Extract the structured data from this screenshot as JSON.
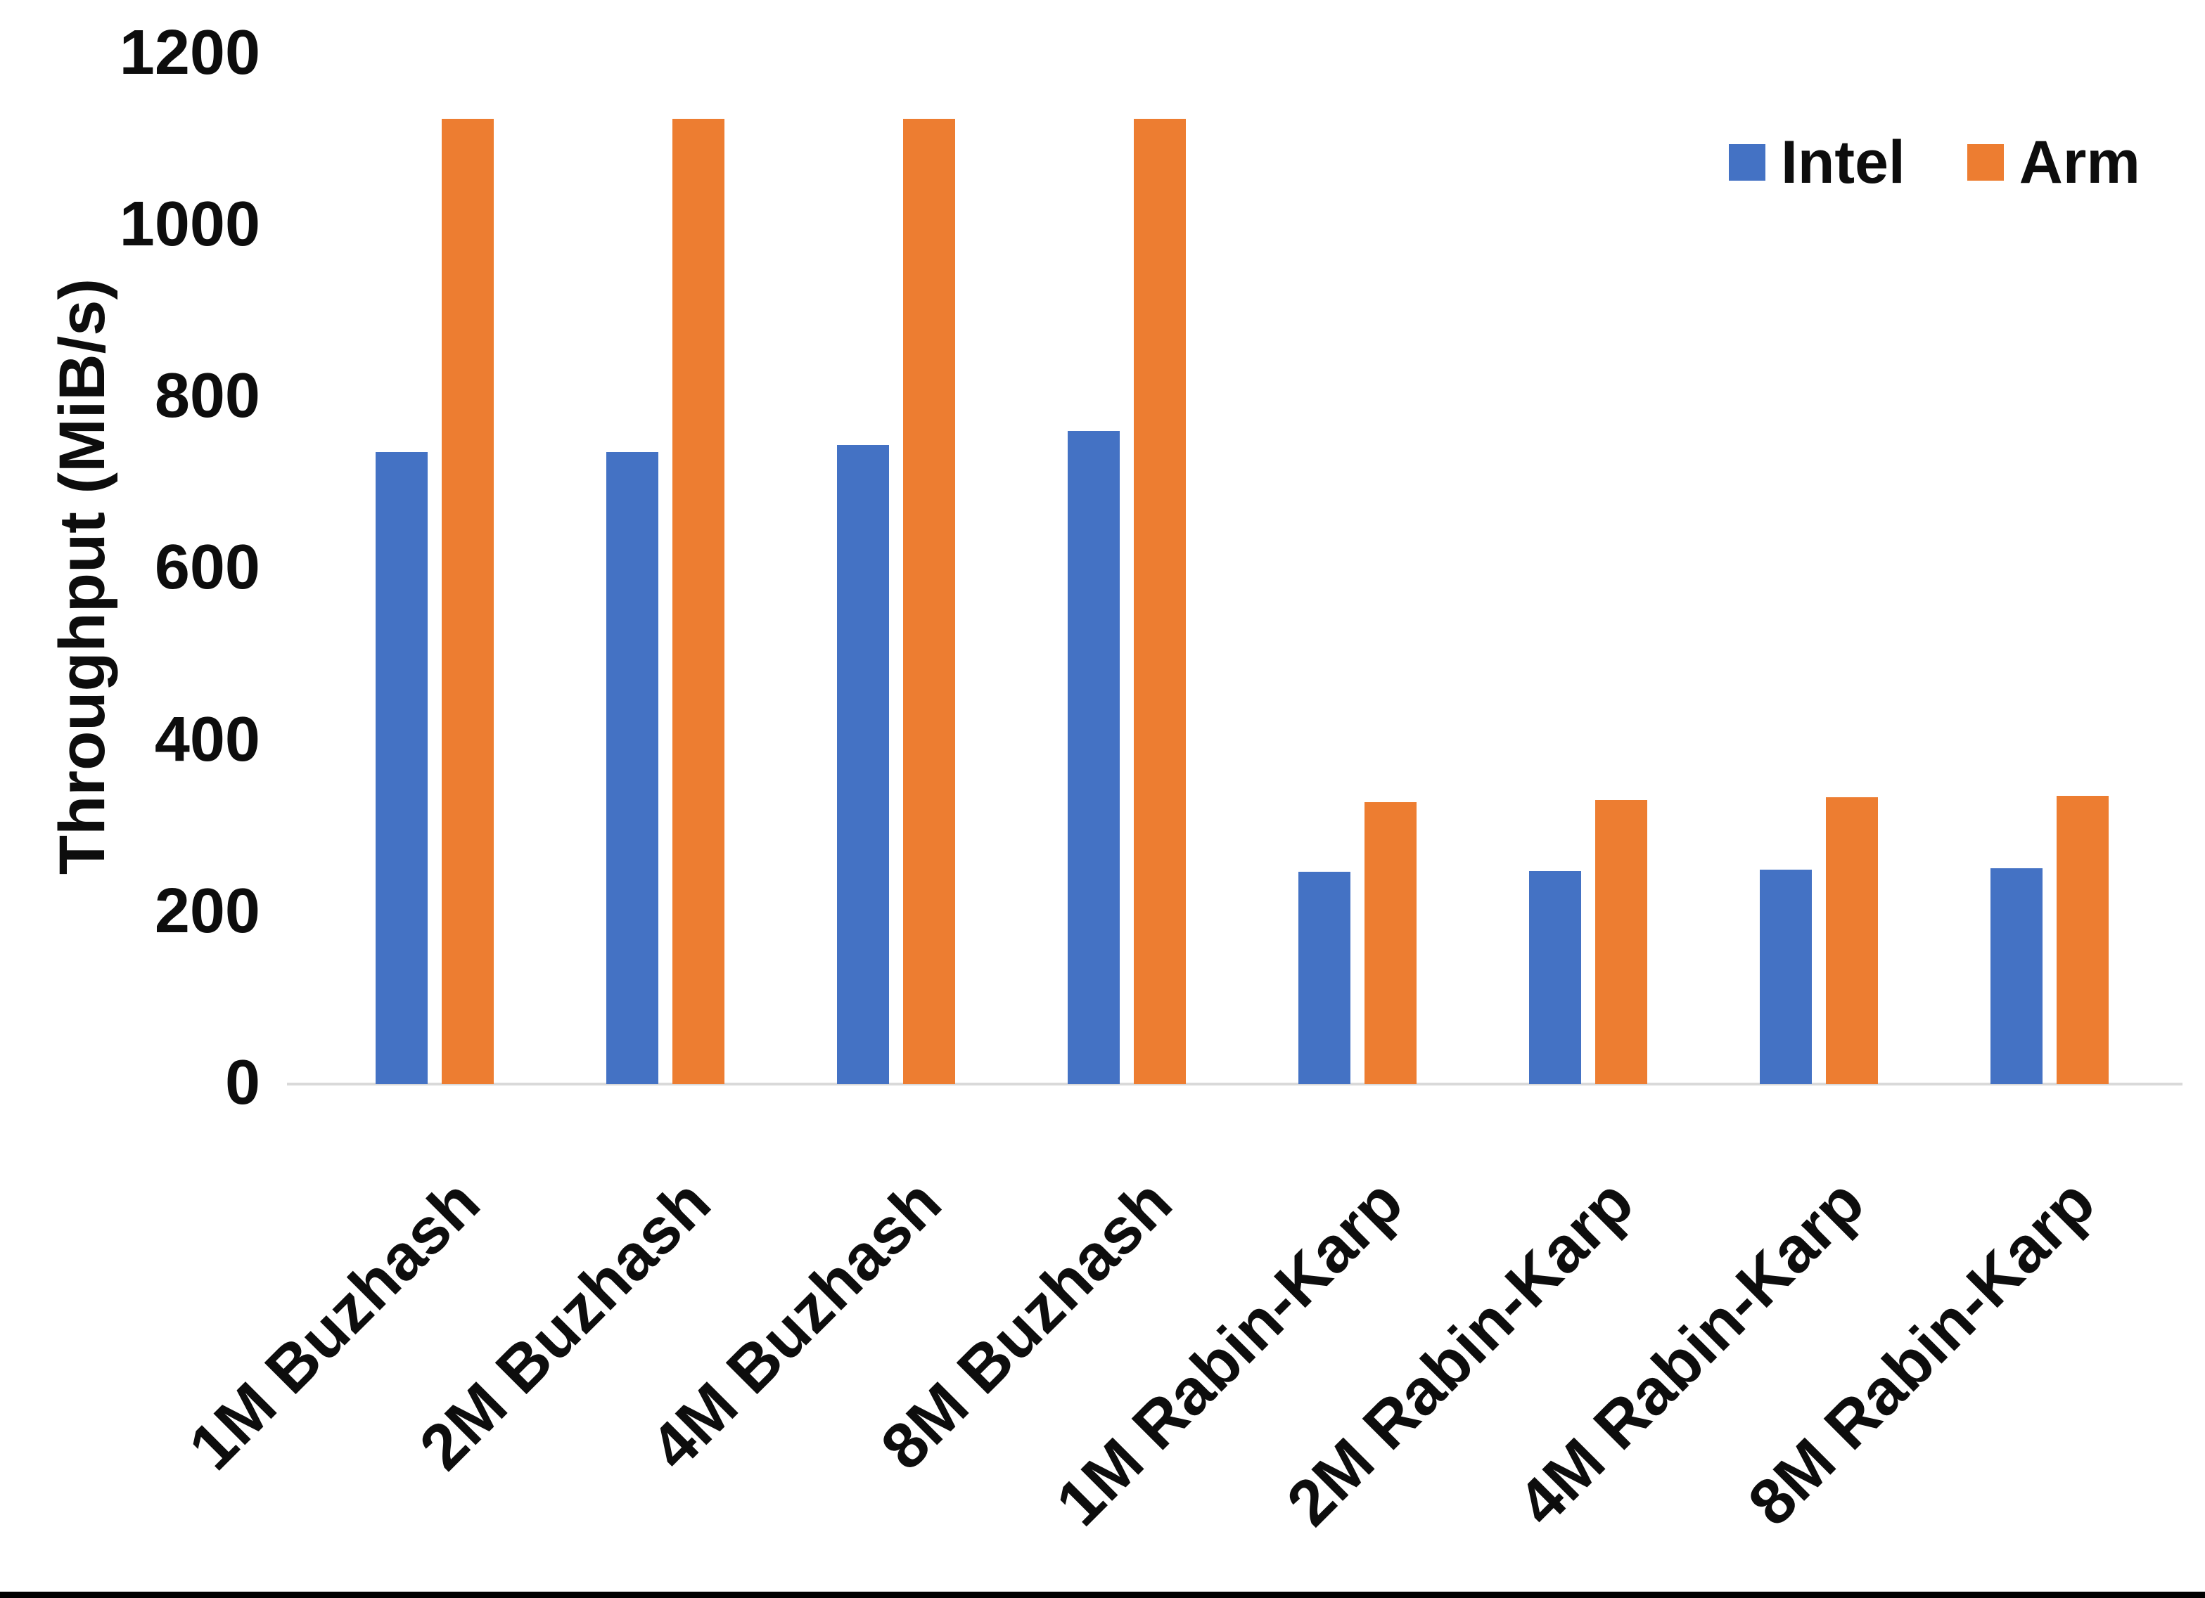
{
  "chart_data": {
    "type": "bar",
    "title": "",
    "categories": [
      "1M Buzhash",
      "2M Buzhash",
      "4M Buzhash",
      "8M Buzhash",
      "1M Rabin-Karp",
      "2M Rabin-Karp",
      "4M Rabin-Karp",
      "8M Rabin-Karp"
    ],
    "series": [
      {
        "name": "Intel",
        "color": "#4472C4",
        "values": [
          736,
          736,
          744,
          761,
          247,
          248,
          250,
          251
        ]
      },
      {
        "name": "Arm",
        "color": "#ED7D31",
        "values": [
          1124,
          1124,
          1124,
          1124,
          328,
          331,
          334,
          336
        ]
      }
    ],
    "xlabel": "",
    "ylabel": "Throughput (MiB/s)",
    "ylim": [
      0,
      1200
    ],
    "yticks": [
      0,
      200,
      400,
      600,
      800,
      1000,
      1200
    ],
    "grid": false,
    "legend_position": "top-right"
  },
  "colors": {
    "background": "#ffffff",
    "text": "#0d0d0d",
    "axis_line": "#d9d9d9",
    "bottom_bar": "#000000",
    "intel": "#4472C4",
    "arm": "#ED7D31"
  }
}
